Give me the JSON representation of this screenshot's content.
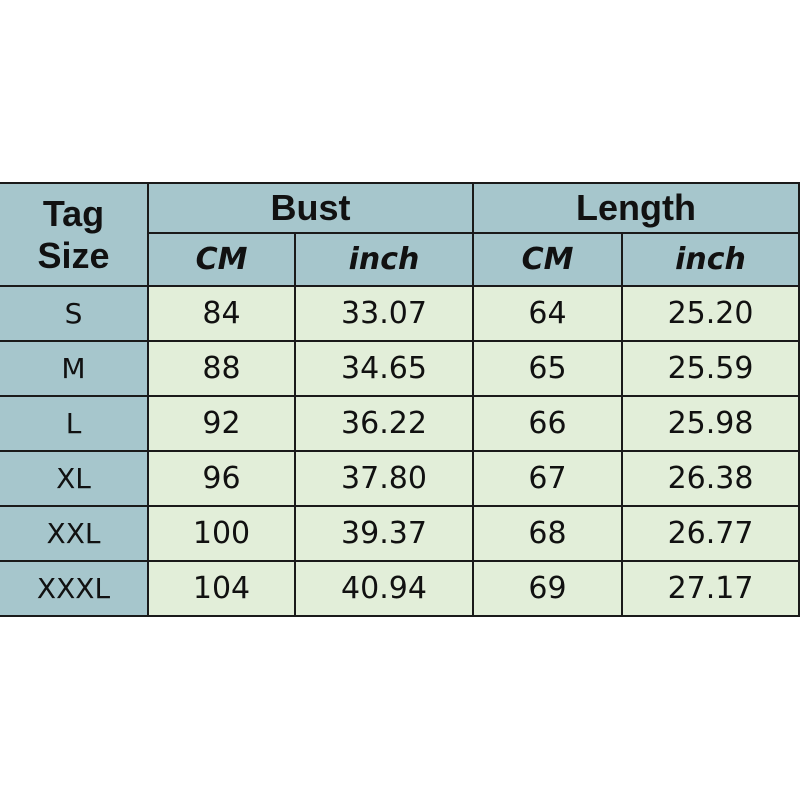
{
  "header": {
    "tag_size": [
      "Tag",
      "Size"
    ],
    "bust": "Bust",
    "length": "Length",
    "units": [
      "CM",
      "inch",
      "CM",
      "inch"
    ]
  },
  "colors": {
    "header_bg": "#a6c6cc",
    "cell_bg": "#e2eed9",
    "border": "#1a1a1a"
  },
  "rows": [
    {
      "size": "S",
      "bust_cm": "84",
      "bust_inch": "33.07",
      "length_cm": "64",
      "length_inch": "25.20"
    },
    {
      "size": "M",
      "bust_cm": "88",
      "bust_inch": "34.65",
      "length_cm": "65",
      "length_inch": "25.59"
    },
    {
      "size": "L",
      "bust_cm": "92",
      "bust_inch": "36.22",
      "length_cm": "66",
      "length_inch": "25.98"
    },
    {
      "size": "XL",
      "bust_cm": "96",
      "bust_inch": "37.80",
      "length_cm": "67",
      "length_inch": "26.38"
    },
    {
      "size": "XXL",
      "bust_cm": "100",
      "bust_inch": "39.37",
      "length_cm": "68",
      "length_inch": "26.77"
    },
    {
      "size": "XXXL",
      "bust_cm": "104",
      "bust_inch": "40.94",
      "length_cm": "69",
      "length_inch": "27.17"
    }
  ]
}
